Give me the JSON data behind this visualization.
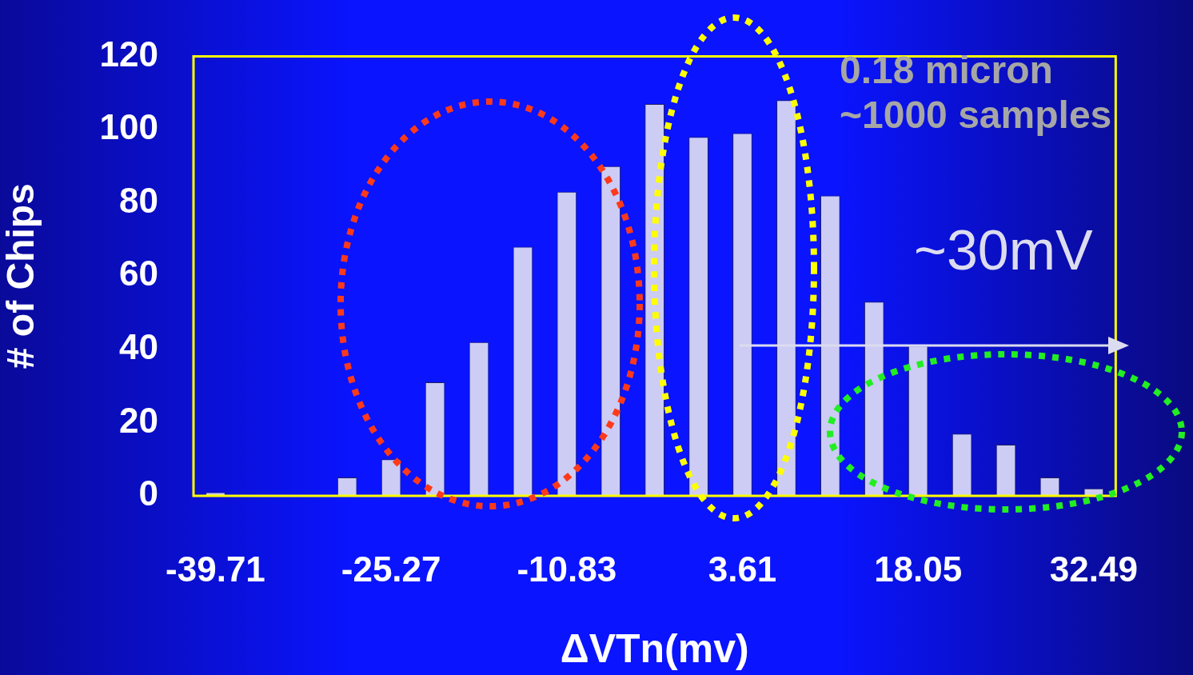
{
  "chart_data": {
    "type": "bar",
    "xlabel": "ΔVTn(mv)",
    "ylabel": "# of Chips",
    "categories": [
      "-39.71",
      null,
      null,
      null,
      "-25.27",
      null,
      null,
      null,
      "-10.83",
      null,
      null,
      null,
      "3.61",
      null,
      null,
      null,
      "18.05",
      null,
      null,
      null,
      "32.49"
    ],
    "values": [
      1,
      0,
      0,
      5,
      10,
      31,
      42,
      68,
      83,
      90,
      107,
      98,
      99,
      108,
      82,
      53,
      41,
      17,
      14,
      5,
      2
    ],
    "color": "#ccccf5",
    "ylim": [
      0,
      120
    ],
    "yticks": [
      0,
      20,
      40,
      60,
      80,
      100,
      120
    ],
    "grid": false,
    "annotations": [
      "0.18 micron",
      "~1000 samples",
      "~30mV"
    ]
  }
}
